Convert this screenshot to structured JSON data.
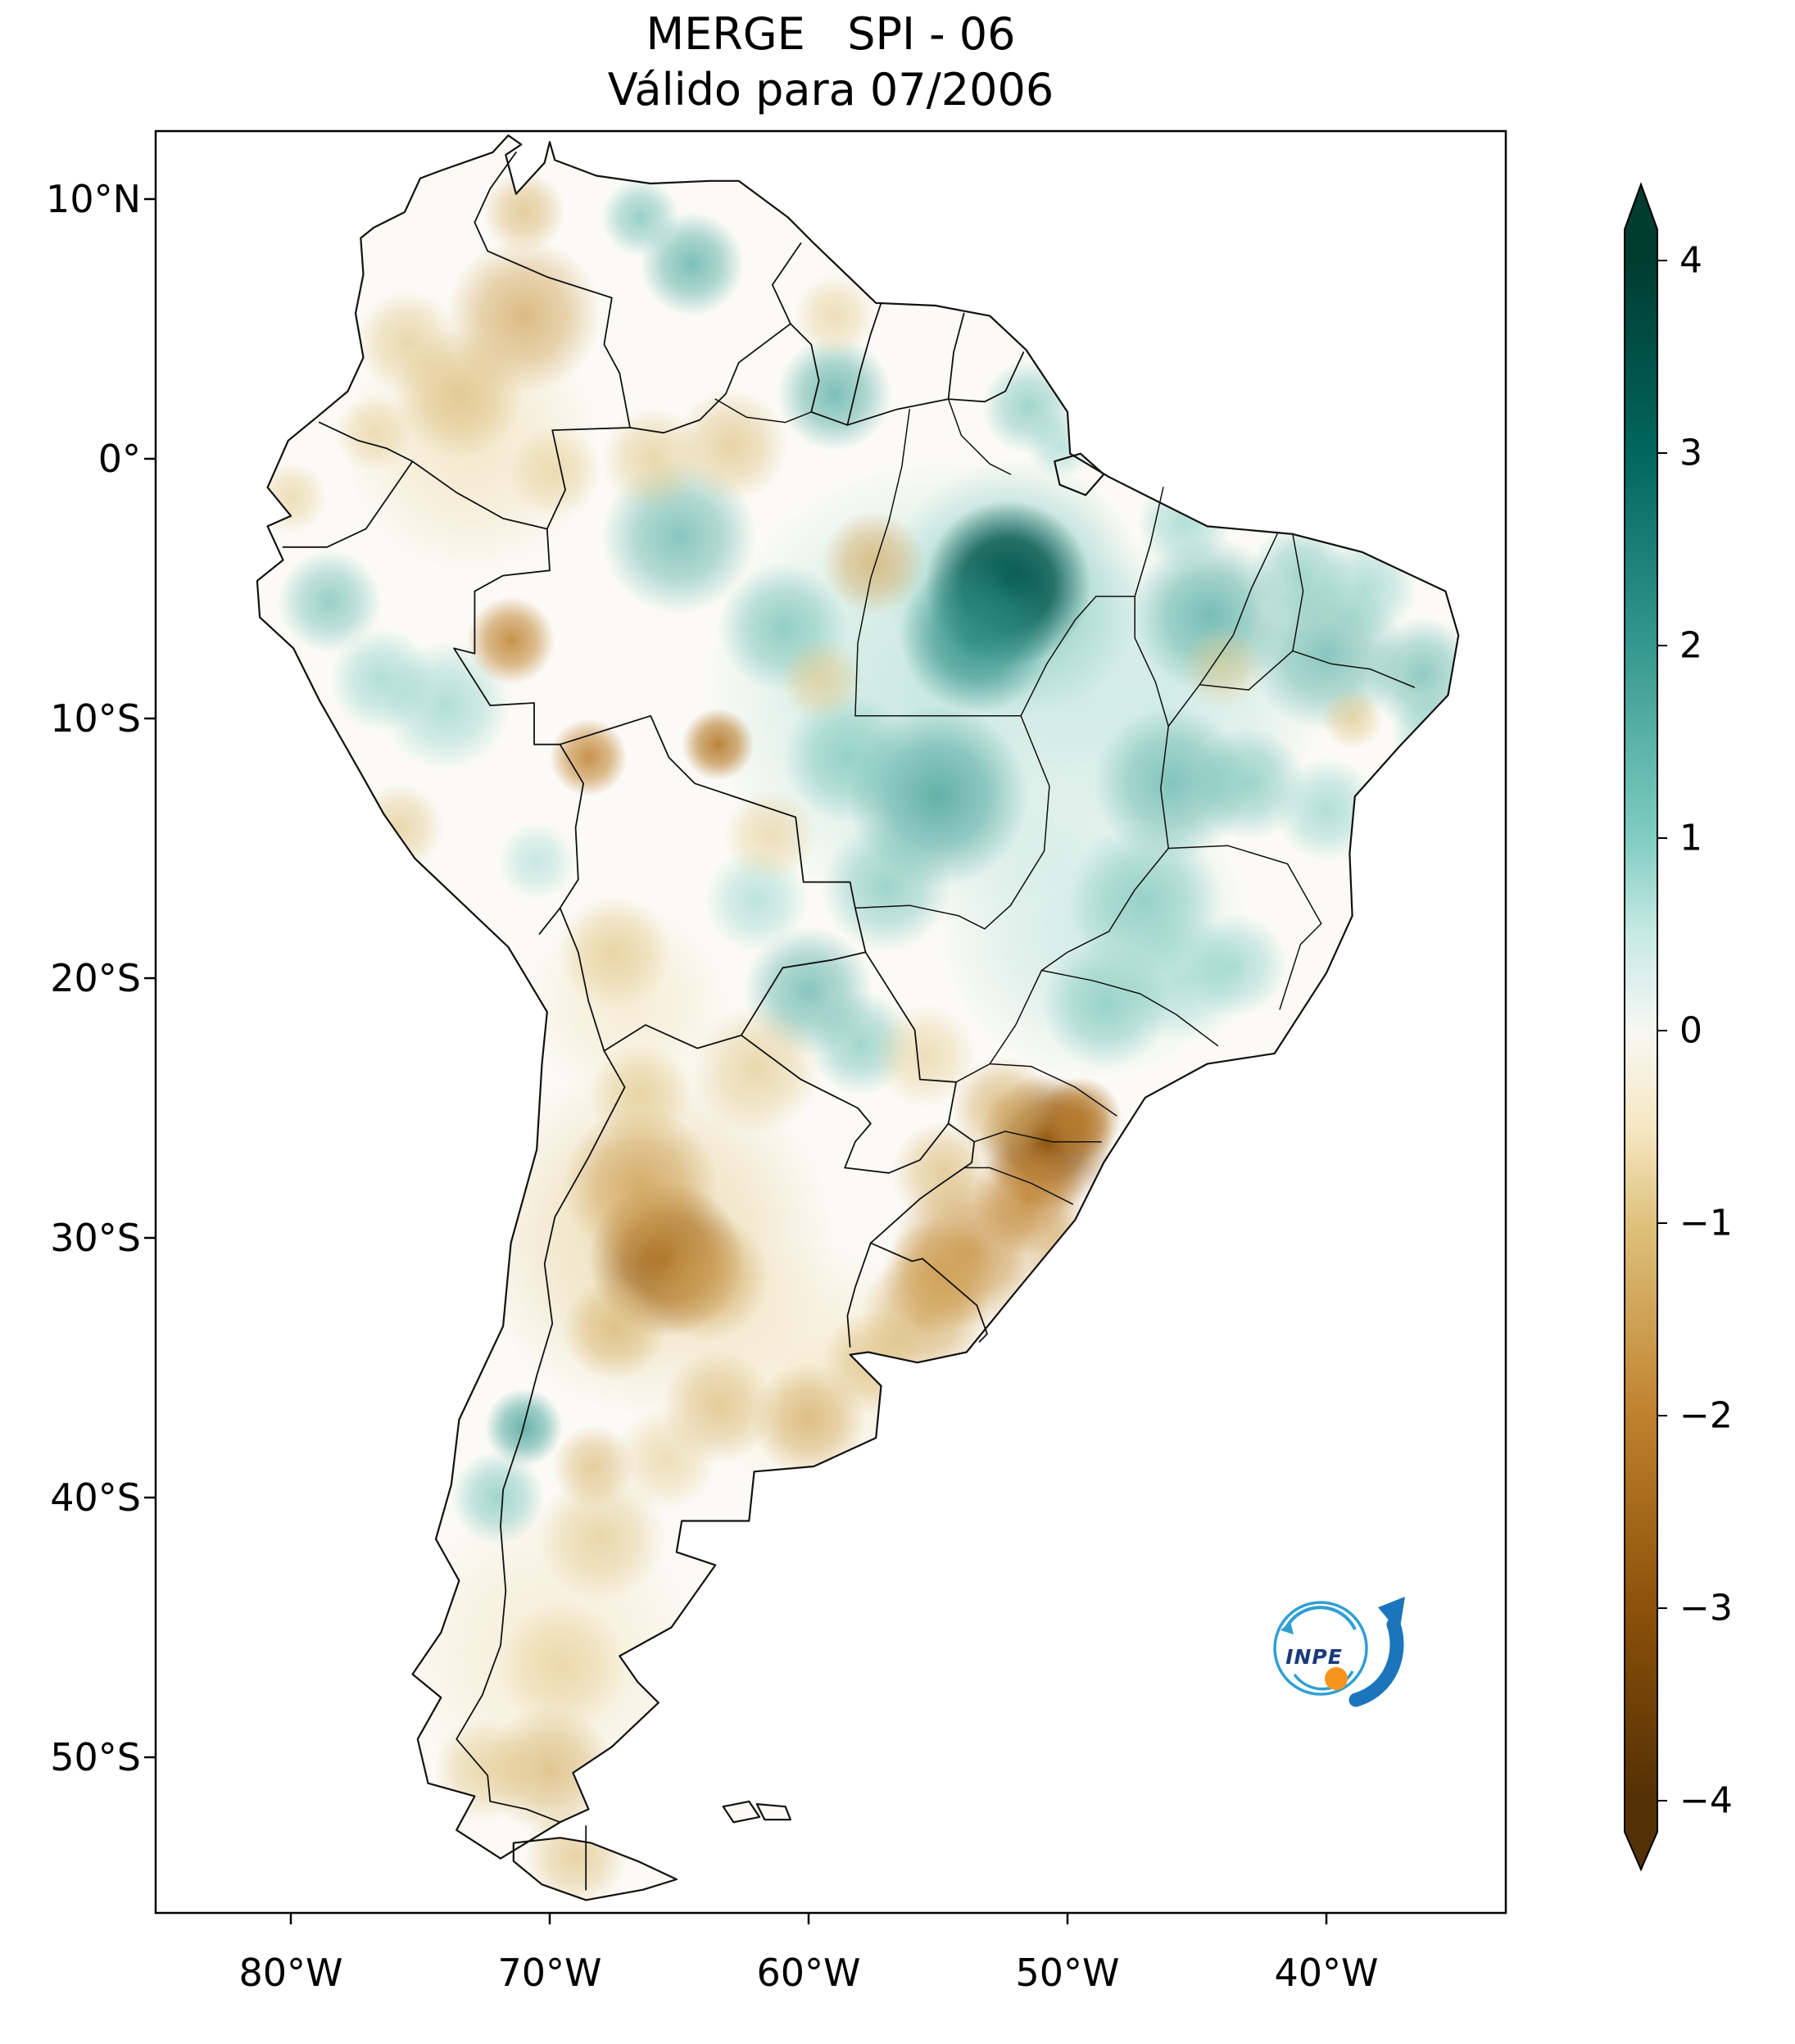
{
  "figure": {
    "title": "MERGE   SPI - 06",
    "subtitle": "Válido para 07/2006"
  },
  "axes": {
    "y_ticks": [
      "10°N",
      "0°",
      "10°S",
      "20°S",
      "30°S",
      "40°S",
      "50°S"
    ],
    "x_ticks": [
      "80°W",
      "70°W",
      "60°W",
      "50°W",
      "40°W"
    ]
  },
  "colorbar": {
    "tick_labels": [
      "4",
      "3",
      "2",
      "1",
      "0",
      "−1",
      "−2",
      "−3",
      "−4"
    ]
  },
  "logo": {
    "label": "INPE"
  },
  "chart_data": {
    "type": "heatmap",
    "title": "MERGE SPI - 06",
    "subtitle": "Válido para 07/2006",
    "product": "MERGE",
    "index": "SPI-06",
    "valid_for": "07/2006",
    "region": "South America",
    "lon_range": [
      -85.5,
      -33.0
    ],
    "lat_range": [
      -56.0,
      12.6
    ],
    "x_tick_values_deg_west": [
      80,
      70,
      60,
      50,
      40
    ],
    "y_tick_values_deg": [
      10,
      0,
      -10,
      -20,
      -30,
      -40,
      -50
    ],
    "colorbar": {
      "min": -4,
      "max": 4,
      "ticks": [
        4,
        3,
        2,
        1,
        0,
        -1,
        -2,
        -3,
        -4
      ],
      "extend": "both"
    },
    "colormap": [
      {
        "value": -4,
        "color": "#543005"
      },
      {
        "value": -3,
        "color": "#8c510a"
      },
      {
        "value": -2,
        "color": "#bf812d"
      },
      {
        "value": -1,
        "color": "#dfc27d"
      },
      {
        "value": -0.5,
        "color": "#f6e8c3"
      },
      {
        "value": 0,
        "color": "#f7f7f4"
      },
      {
        "value": 0.5,
        "color": "#c7eae5"
      },
      {
        "value": 1,
        "color": "#80cdc1"
      },
      {
        "value": 2,
        "color": "#35978f"
      },
      {
        "value": 3,
        "color": "#01665e"
      },
      {
        "value": 4,
        "color": "#003c30"
      }
    ],
    "anomaly_centers_format": [
      "lon",
      "lat",
      "spi",
      "radius_deg"
    ],
    "anomaly_centers": [
      [
        -55,
        -9,
        0.8,
        9
      ],
      [
        -46,
        -9,
        0.7,
        6
      ],
      [
        -49,
        -18,
        0.7,
        6
      ],
      [
        -52,
        -5,
        1.2,
        5
      ],
      [
        -66,
        -30,
        -0.9,
        7
      ],
      [
        -73,
        0.5,
        -0.7,
        5
      ],
      [
        -70,
        -46,
        -0.6,
        6
      ],
      [
        -67,
        -21,
        -0.6,
        4
      ],
      [
        -60,
        -35,
        -0.6,
        5
      ],
      [
        -52.3,
        -4.8,
        3.4,
        3.2
      ],
      [
        -53.5,
        -6.8,
        2.2,
        3
      ],
      [
        -44.5,
        -6,
        1.6,
        3
      ],
      [
        -40,
        -7.5,
        1.5,
        3
      ],
      [
        -36.3,
        -8.3,
        1.4,
        2.2
      ],
      [
        -41,
        -4.5,
        1.2,
        2
      ],
      [
        -46,
        -12.5,
        1.5,
        3
      ],
      [
        -43,
        -12.5,
        1.2,
        2.2
      ],
      [
        -40,
        -13.5,
        1,
        2
      ],
      [
        -55,
        -13,
        1.8,
        3.5
      ],
      [
        -58.5,
        -11.5,
        1.2,
        2.5
      ],
      [
        -57,
        -16.5,
        1.2,
        2.5
      ],
      [
        -62,
        -17,
        0.9,
        2
      ],
      [
        -47,
        -17,
        1.2,
        3
      ],
      [
        -45.5,
        -20,
        0.9,
        2.5
      ],
      [
        -48.5,
        -21,
        1.2,
        2.5
      ],
      [
        -43.5,
        -19.5,
        1,
        2
      ],
      [
        -60,
        -20.5,
        1.5,
        2.5
      ],
      [
        -58,
        -22.5,
        1.2,
        2
      ],
      [
        -65,
        -3,
        1.5,
        3
      ],
      [
        -61,
        -6.5,
        1.3,
        2.5
      ],
      [
        -59,
        2.5,
        1.6,
        2.2
      ],
      [
        -51.5,
        2,
        1.2,
        1.8
      ],
      [
        -50.3,
        0.5,
        0.9,
        1.3
      ],
      [
        -64.5,
        7.5,
        1.6,
        2
      ],
      [
        -66.5,
        9.3,
        1.3,
        1.5
      ],
      [
        -78.5,
        -5.5,
        1.3,
        2
      ],
      [
        -74,
        -9.5,
        1,
        2.5
      ],
      [
        -76.5,
        -8.5,
        1,
        2
      ],
      [
        -70.5,
        -15.5,
        0.8,
        1.5
      ],
      [
        -71,
        -37.3,
        1.8,
        1.5
      ],
      [
        -72,
        -40,
        1.2,
        1.8
      ],
      [
        -45.5,
        -2.5,
        1,
        1.8
      ],
      [
        -38.5,
        -5,
        1,
        2
      ],
      [
        -36,
        -10.5,
        1,
        1.5
      ],
      [
        -65.5,
        -30.8,
        -2.6,
        3
      ],
      [
        -66.5,
        -28,
        -1.6,
        3
      ],
      [
        -64,
        -31.5,
        -1.5,
        2.5
      ],
      [
        -67.5,
        -33.5,
        -1.3,
        2
      ],
      [
        -50.8,
        -26.3,
        -2.9,
        2.6
      ],
      [
        -49.5,
        -25.4,
        -2.2,
        1.6
      ],
      [
        -52.5,
        -25,
        -1.4,
        2
      ],
      [
        -51.5,
        -28.5,
        -2,
        2.2
      ],
      [
        -50,
        -30.7,
        -1.5,
        1.6
      ],
      [
        -53.8,
        -30.5,
        -1.8,
        3
      ],
      [
        -55,
        -31.5,
        -1.6,
        2.2
      ],
      [
        -55.5,
        -33,
        -1.5,
        2.5
      ],
      [
        -57.5,
        -34.8,
        -1.2,
        2
      ],
      [
        -54.8,
        -27.5,
        -1.2,
        2
      ],
      [
        -71,
        5.5,
        -1.5,
        3
      ],
      [
        -73.5,
        2.5,
        -1.2,
        2.5
      ],
      [
        -75.5,
        4.5,
        -1,
        2
      ],
      [
        -76.8,
        1,
        -0.9,
        1.5
      ],
      [
        -71,
        9.5,
        -1.2,
        1.6
      ],
      [
        -59,
        5.5,
        -0.9,
        1.6
      ],
      [
        -71.5,
        -7,
        -2,
        1.7
      ],
      [
        -68.5,
        -11.5,
        -2,
        1.5
      ],
      [
        -63.5,
        -11,
        -2.2,
        1.4
      ],
      [
        -61.5,
        -14.5,
        -0.9,
        1.8
      ],
      [
        -59.5,
        -8.5,
        -1,
        1.6
      ],
      [
        -57.5,
        -4,
        -1.4,
        2
      ],
      [
        -63,
        0.5,
        -1.1,
        2.2
      ],
      [
        -66,
        0,
        -1,
        2
      ],
      [
        -69.8,
        -0.5,
        -0.9,
        1.8
      ],
      [
        -75.8,
        -14.2,
        -1,
        1.7
      ],
      [
        -67.5,
        -19,
        -1,
        2.2
      ],
      [
        -62,
        -23.5,
        -1,
        2.5
      ],
      [
        -55.5,
        -23,
        -0.9,
        2
      ],
      [
        -66.5,
        -24.5,
        -1,
        2
      ],
      [
        -44,
        -8,
        -0.9,
        1.6
      ],
      [
        -39,
        -10,
        -1,
        1.2
      ],
      [
        -80,
        -1.5,
        -0.9,
        1.4
      ],
      [
        -60,
        -37,
        -1.4,
        2.2
      ],
      [
        -63.5,
        -36.5,
        -1.2,
        2.2
      ],
      [
        -68.3,
        -38.8,
        -1.2,
        1.6
      ],
      [
        -65.5,
        -38.5,
        -0.9,
        2
      ],
      [
        -68,
        -41.5,
        -1,
        2.5
      ],
      [
        -69.5,
        -46.5,
        -0.9,
        2.5
      ],
      [
        -70,
        -50.5,
        -1.3,
        2.5
      ],
      [
        -72.5,
        -50.5,
        -1,
        2
      ],
      [
        -69,
        -53.8,
        -1.1,
        2
      ]
    ]
  }
}
